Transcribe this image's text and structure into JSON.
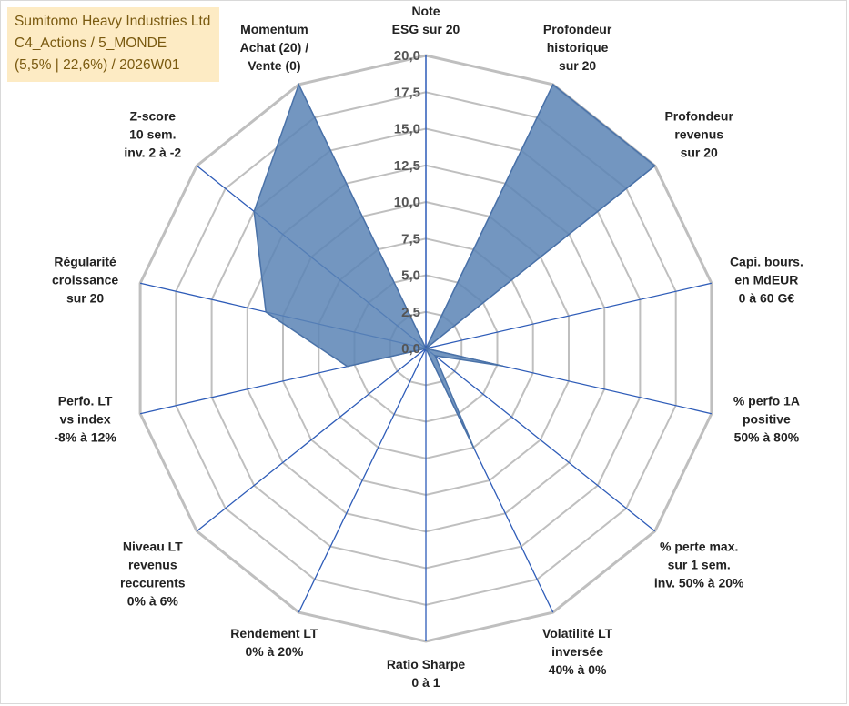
{
  "title_box": {
    "line1": "Sumitomo Heavy Industries Ltd",
    "line2": "C4_Actions / 5_MONDE",
    "line3": "(5,5% | 22,6%) / 2026W01"
  },
  "chart_data": {
    "type": "radar",
    "title": "Sumitomo Heavy Industries Ltd",
    "rmin": 0,
    "rmax": 20,
    "ticks": [
      "0,0",
      "2,5",
      "5,0",
      "7,5",
      "10,0",
      "12,5",
      "15,0",
      "17,5",
      "20,0"
    ],
    "axes": [
      [
        "Note",
        "ESG sur 20"
      ],
      [
        "Profondeur",
        "historique",
        "sur 20"
      ],
      [
        "Profondeur",
        "revenus",
        "sur 20"
      ],
      [
        "Capi. bours.",
        "en MdEUR",
        "0 à 60 G€"
      ],
      [
        "% perfo 1A",
        "positive",
        "50% à 80%"
      ],
      [
        "% perte max.",
        "sur 1 sem.",
        "inv. 50% à 20%"
      ],
      [
        "Volatilité LT",
        "inversée",
        "40% à 0%"
      ],
      [
        "Ratio Sharpe",
        "0 à 1"
      ],
      [
        "Rendement LT",
        "0% à 20%"
      ],
      [
        "Niveau LT",
        "revenus",
        "reccurents",
        "0% à 6%"
      ],
      [
        "Perfo. LT",
        "vs index",
        "-8% à 12%"
      ],
      [
        "Régularité",
        "croissance",
        "sur 20"
      ],
      [
        "Z-score",
        "10 sem.",
        "inv. 2 à -2"
      ],
      [
        "Momentum",
        "Achat (20) /",
        "Vente (0)"
      ]
    ],
    "series": [
      {
        "name": "Sumitomo Heavy Industries Ltd",
        "values": [
          0,
          20,
          20,
          0,
          5.4,
          0.8,
          7.6,
          0,
          0,
          0,
          5.5,
          11.2,
          15,
          20
        ]
      }
    ],
    "colors": {
      "fill": "#5b84b5",
      "stroke": "#4a72a8",
      "grid": "#bfbfbf",
      "spoke": "#2e5cb8"
    }
  }
}
